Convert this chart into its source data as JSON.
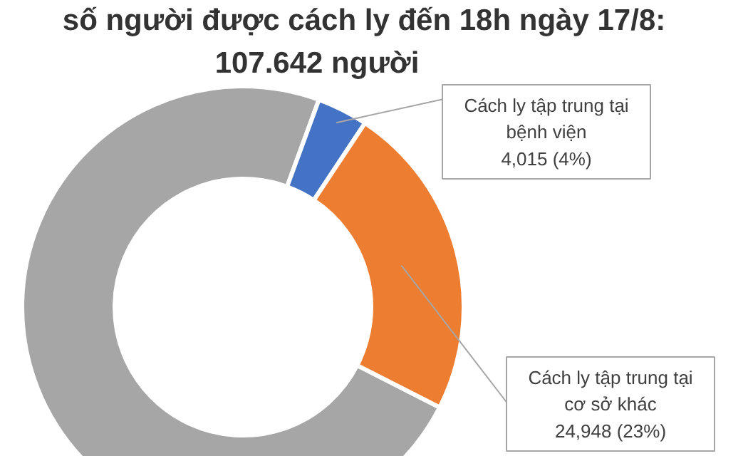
{
  "chart_data": {
    "type": "donut",
    "title": "số người được cách ly đến 18h ngày 17/8:\n107.642 người",
    "categories": [
      null,
      "Cách ly tập trung tại bệnh viện",
      "Cách ly tập trung tại cơ sở khác"
    ],
    "values": [
      78679,
      4015,
      24948
    ],
    "value_labels": [
      null,
      "4,015 (4%)",
      "24,948 (23%)"
    ],
    "colors": [
      "#a6a6a6",
      "#4472c4",
      "#ed7d31"
    ]
  }
}
